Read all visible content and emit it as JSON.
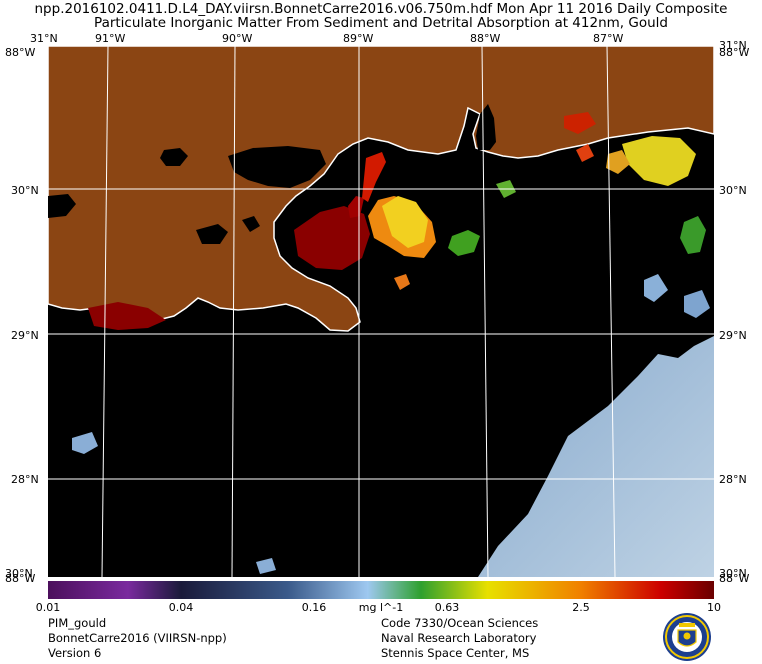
{
  "header": {
    "line1": "npp.2016102.0411.D.L4_DAY.viirsn.BonnetCarre2016.v06.750m.hdf    Mon Apr 11 2016 Daily Composite",
    "line2": "Particulate Inorganic Matter From Sediment and Detrital Absorption at 412nm, Gould"
  },
  "map": {
    "lon_labels": [
      "91°W",
      "90°W",
      "89°W",
      "88°W",
      "87°W"
    ],
    "lat_labels": [
      "30°N",
      "29°N",
      "28°N"
    ],
    "corner_labels": {
      "top_left_lat": "31°N",
      "top_left_lon": "88°W",
      "top_right_lat": "31°N",
      "top_right_lon": "88°W",
      "bottom_left_lat": "30°N",
      "bottom_left_lon": "88°W",
      "bottom_right_lat": "30°N",
      "bottom_right_lon": "88°W"
    },
    "colors": {
      "land": "#8b4513",
      "water_nodata": "#000000",
      "grid": "#ffffff"
    }
  },
  "colorbar": {
    "ticks": [
      "0.01",
      "0.04",
      "0.16",
      "0.63",
      "2.5",
      "10"
    ],
    "unit": "mg l^-1",
    "scale": "log",
    "range": [
      0.01,
      10
    ],
    "colors": [
      "#4b0f5c",
      "#7a2a9e",
      "#1a1a3a",
      "#3a5a8a",
      "#9ec8f0",
      "#2ea02e",
      "#e8e000",
      "#f08000",
      "#cc0000",
      "#6a0000"
    ]
  },
  "footer": {
    "left": [
      "PIM_gould",
      "BonnetCarre2016 (VIIRSN-npp)",
      "Version 6"
    ],
    "right": [
      "Code 7330/Ocean Sciences",
      "Naval Research Laboratory",
      "Stennis Space Center, MS"
    ]
  },
  "logo": {
    "name": "naval-research-laboratory-seal"
  }
}
